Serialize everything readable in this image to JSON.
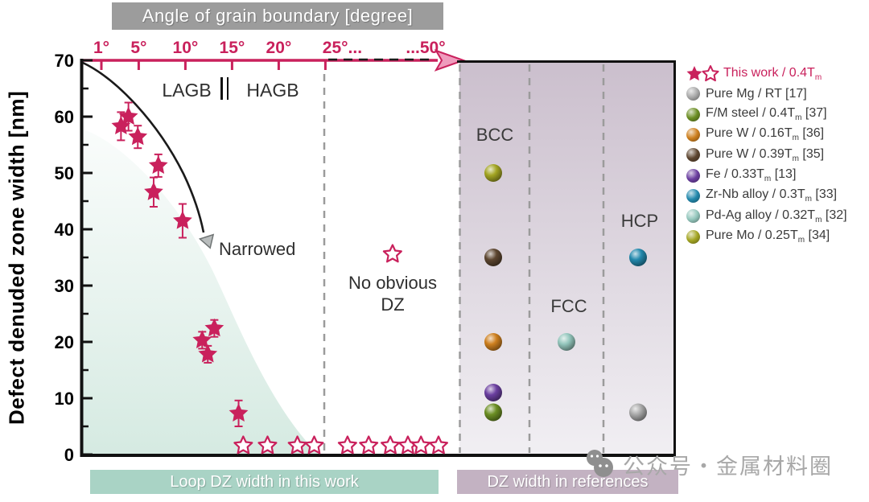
{
  "figure": {
    "title": "Angle of grain boundary [degree]",
    "watermark": "公众号・金属材料圈",
    "boxes": {
      "loop_dz": "Loop DZ width in this work",
      "dz_refs": "DZ width in references"
    }
  },
  "colors": {
    "accent_pink": "#c9215c",
    "title_bar": "#9c9c9c",
    "teal_box": "#a9d3c5",
    "mauve_box": "#c3b2c2",
    "panel_top": "#cbbfcd",
    "panel_bottom": "#f1eff3",
    "teal_fill": "#d3e9e0",
    "dash_gray": "#9b9b9b",
    "watermark_gray": "#a8a8a8"
  },
  "chart_data": {
    "type": "scatter",
    "title": "Angle of grain boundary [degree]",
    "xlabel": "Angle of grain boundary [degree]",
    "ylabel": "Defect denuded zone width [nm]",
    "ylim": [
      0,
      70
    ],
    "y_ticks": [
      0,
      10,
      20,
      30,
      40,
      50,
      60,
      70
    ],
    "y_minor_step": 5,
    "x_ticks": [
      {
        "deg": 1,
        "label": "1°",
        "mark": true
      },
      {
        "deg": 5,
        "label": "5°",
        "mark": true
      },
      {
        "deg": 10,
        "label": "10°",
        "mark": true
      },
      {
        "deg": 15,
        "label": "15°",
        "mark": true
      },
      {
        "deg": 20,
        "label": "20°",
        "mark": true
      },
      {
        "deg": 25,
        "label": "25°...",
        "mark": true
      },
      {
        "deg": 50,
        "label": "...50°",
        "mark": false
      }
    ],
    "x_axis_break": "axis compressed beyond 25°",
    "annotations": {
      "lagb": "LAGB",
      "hagb": "HAGB",
      "narrowed": "Narrowed",
      "no_dz": "No obvious DZ",
      "bcc": "BCC",
      "fcc": "FCC",
      "hcp": "HCP"
    },
    "series": [
      {
        "name": "This work / 0.4Tm (loop DZ width, filled stars)",
        "marker": "star",
        "color": "#c9215c",
        "points": [
          {
            "deg": 3.1,
            "nm": 58.3,
            "err": 2.5
          },
          {
            "deg": 3.9,
            "nm": 60.0,
            "err": 2.5
          },
          {
            "deg": 4.9,
            "nm": 56.4,
            "err": 2.0
          },
          {
            "deg": 6.6,
            "nm": 46.6,
            "err": 2.6
          },
          {
            "deg": 7.1,
            "nm": 51.3,
            "err": 2.0
          },
          {
            "deg": 9.7,
            "nm": 41.5,
            "err": 3.0
          },
          {
            "deg": 11.8,
            "nm": 20.3,
            "err": 1.5
          },
          {
            "deg": 12.4,
            "nm": 17.8,
            "err": 1.5
          },
          {
            "deg": 13.1,
            "nm": 22.4,
            "err": 1.5
          },
          {
            "deg": 15.7,
            "nm": 7.3,
            "err": 2.3
          }
        ]
      },
      {
        "name": "This work / 0.4Tm (no obvious DZ, open stars)",
        "marker": "star-open",
        "color": "#c9215c",
        "points": [
          {
            "deg": 16.2,
            "nm": 1
          },
          {
            "deg": 18.8,
            "nm": 1
          },
          {
            "deg": 22.0,
            "nm": 1
          },
          {
            "deg": 23.8,
            "nm": 1
          },
          {
            "deg": 29.8,
            "nm": 1
          },
          {
            "deg": 34.5,
            "nm": 1
          },
          {
            "deg": 39.3,
            "nm": 1
          },
          {
            "deg": 43.2,
            "nm": 1
          },
          {
            "deg": 46.1,
            "nm": 1
          },
          {
            "deg": 50.0,
            "nm": 1
          },
          {
            "deg": 39.8,
            "nm": 35
          }
        ]
      },
      {
        "name": "References (spheres)",
        "marker": "sphere",
        "points": [
          {
            "label": "Pure Mo / 0.25Tm [34]",
            "group": "BCC",
            "nm": 50,
            "color": "#a3a523"
          },
          {
            "label": "Pure W / 0.39Tm [35]",
            "group": "BCC",
            "nm": 35,
            "color": "#5d4630"
          },
          {
            "label": "Pure W / 0.16Tm [36]",
            "group": "BCC",
            "nm": 20,
            "color": "#cd7f1e"
          },
          {
            "label": "Fe / 0.33Tm [13]",
            "group": "BCC",
            "nm": 11,
            "color": "#6b3fa0"
          },
          {
            "label": "F/M steel / 0.4Tm [37]",
            "group": "BCC",
            "nm": 7.5,
            "color": "#6b8e23"
          },
          {
            "label": "Pd-Ag alloy / 0.32Tm [32]",
            "group": "FCC",
            "nm": 20,
            "color": "#93c6bc"
          },
          {
            "label": "Zr-Nb alloy / 0.3Tm [33]",
            "group": "HCP",
            "nm": 35,
            "color": "#2389ad"
          },
          {
            "label": "Pure Mg / RT [17]",
            "group": "HCP",
            "nm": 7.5,
            "color": "#a9a9a9"
          }
        ]
      }
    ]
  },
  "legend": {
    "items": [
      {
        "marker": "stars",
        "color": "#c9215c",
        "pre": "This work / 0.4T",
        "sub": "m",
        "post": ""
      },
      {
        "marker": "sphere",
        "color": "#a9a9a9",
        "pre": "Pure Mg / RT [17]",
        "sub": "",
        "post": ""
      },
      {
        "marker": "sphere",
        "color": "#6b8e23",
        "pre": "F/M steel / 0.4T",
        "sub": "m",
        "post": " [37]"
      },
      {
        "marker": "sphere",
        "color": "#cd7f1e",
        "pre": "Pure W / 0.16T",
        "sub": "m",
        "post": " [36]"
      },
      {
        "marker": "sphere",
        "color": "#5d4630",
        "pre": "Pure W / 0.39T",
        "sub": "m",
        "post": " [35]"
      },
      {
        "marker": "sphere",
        "color": "#6b3fa0",
        "pre": "Fe / 0.33T",
        "sub": "m",
        "post": " [13]"
      },
      {
        "marker": "sphere",
        "color": "#2389ad",
        "pre": "Zr-Nb alloy / 0.3T",
        "sub": "m",
        "post": " [33]"
      },
      {
        "marker": "sphere",
        "color": "#93c6bc",
        "pre": "Pd-Ag alloy / 0.32T",
        "sub": "m",
        "post": " [32]"
      },
      {
        "marker": "sphere",
        "color": "#a3a523",
        "pre": "Pure Mo / 0.25T",
        "sub": "m",
        "post": " [34]"
      }
    ]
  }
}
